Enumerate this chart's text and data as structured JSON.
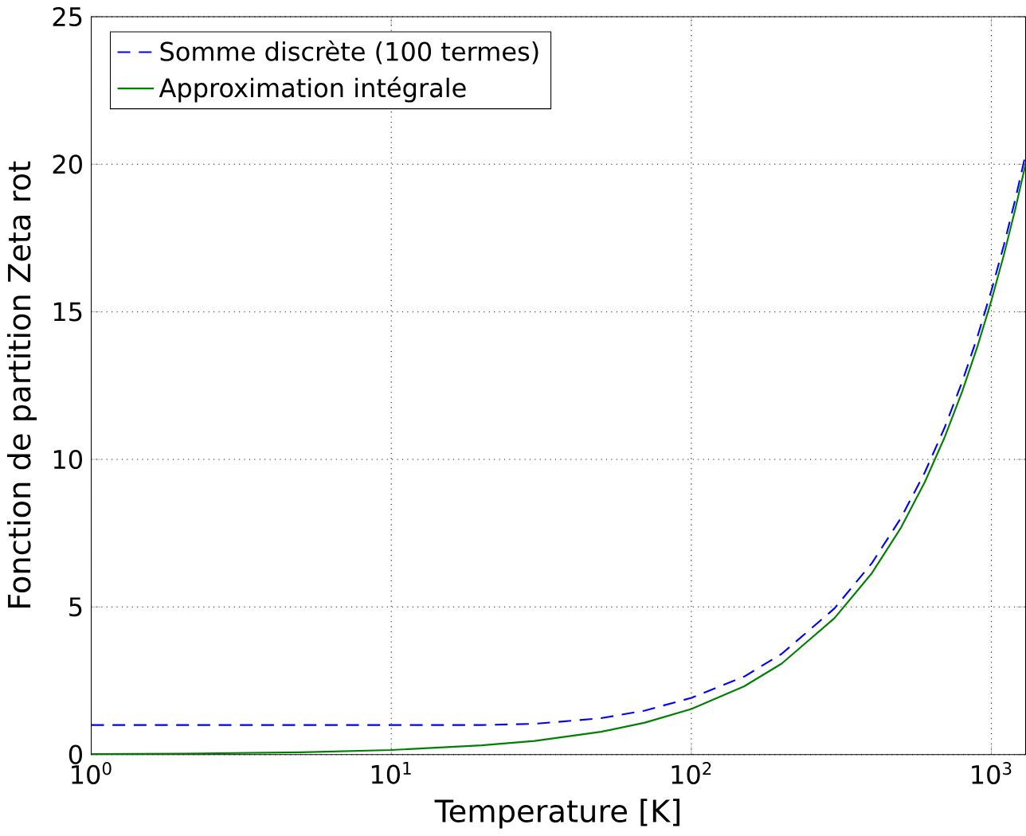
{
  "chart_data": {
    "type": "line",
    "xlabel": "Temperature [K]",
    "ylabel": "Fonction de partition Zeta rot",
    "log": "x",
    "xlim": [
      1,
      1300
    ],
    "ylim": [
      0,
      25
    ],
    "xticks": [
      {
        "value": 1,
        "label": "10$^{0}$"
      },
      {
        "value": 10,
        "label": "10$^{1}$"
      },
      {
        "value": 100,
        "label": "10$^{2}$"
      },
      {
        "value": 1000,
        "label": "10$^{3}$"
      }
    ],
    "yticks": [
      0,
      5,
      10,
      15,
      20,
      25
    ],
    "grid": true,
    "legend": "top left",
    "marker": "none",
    "x": [
      1,
      2,
      5,
      10,
      20,
      30,
      50,
      70,
      100,
      150,
      200,
      300,
      400,
      500,
      600,
      700,
      800,
      900,
      1000,
      1100,
      1200,
      1300
    ],
    "series": [
      {
        "name": "Somme discrète (100 termes)",
        "color": "#0000ff",
        "line_style": "dashed",
        "values": [
          1,
          1,
          1,
          1,
          1.0,
          1.04,
          1.23,
          1.49,
          1.92,
          2.64,
          3.41,
          4.95,
          6.49,
          8.02,
          9.56,
          11.1,
          12.64,
          14.18,
          15.72,
          17.25,
          18.79,
          20.33
        ]
      },
      {
        "name": "Approximation intégrale",
        "color": "#008000",
        "line_style": "solid",
        "values": [
          0.015,
          0.031,
          0.077,
          0.154,
          0.31,
          0.46,
          0.77,
          1.08,
          1.54,
          2.31,
          3.08,
          4.62,
          6.15,
          7.69,
          9.23,
          10.77,
          12.31,
          13.85,
          15.38,
          16.92,
          18.46,
          20.0
        ]
      }
    ]
  }
}
